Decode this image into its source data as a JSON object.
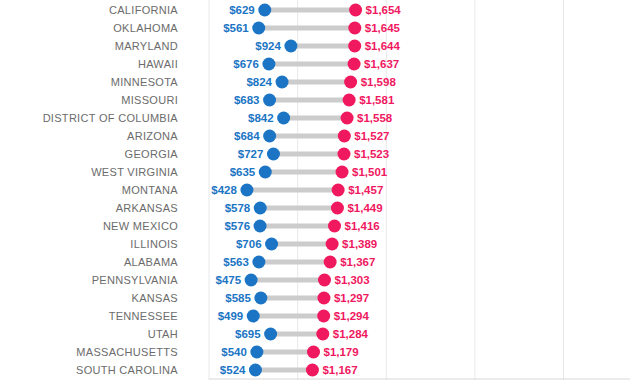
{
  "chart_data": {
    "type": "dumbbell",
    "orientation": "horizontal",
    "categories": [
      "CALIFORNIA",
      "OKLAHOMA",
      "MARYLAND",
      "HAWAII",
      "MINNESOTA",
      "MISSOURI",
      "DISTRICT OF COLUMBIA",
      "ARIZONA",
      "GEORGIA",
      "WEST VIRGINIA",
      "MONTANA",
      "ARKANSAS",
      "NEW MEXICO",
      "ILLINOIS",
      "ALABAMA",
      "PENNSYLVANIA",
      "KANSAS",
      "TENNESSEE",
      "UTAH",
      "MASSACHUSETTS",
      "SOUTH CAROLINA"
    ],
    "series": [
      {
        "color": "#1b75c4",
        "values": [
          629,
          561,
          924,
          676,
          824,
          683,
          842,
          684,
          727,
          635,
          428,
          578,
          576,
          706,
          563,
          475,
          585,
          499,
          695,
          540,
          524
        ],
        "value_labels": [
          "$629",
          "$561",
          "$924",
          "$676",
          "$824",
          "$683",
          "$842",
          "$684",
          "$727",
          "$635",
          "$428",
          "$578",
          "$576",
          "$706",
          "$563",
          "$475",
          "$585",
          "$499",
          "$695",
          "$540",
          "$524"
        ]
      },
      {
        "color": "#f0185f",
        "values": [
          1654,
          1645,
          1644,
          1637,
          1598,
          1581,
          1558,
          1527,
          1523,
          1501,
          1457,
          1449,
          1416,
          1389,
          1367,
          1303,
          1297,
          1294,
          1284,
          1179,
          1167
        ],
        "value_labels": [
          "$1,654",
          "$1,645",
          "$1,644",
          "$1,637",
          "$1,598",
          "$1,581",
          "$1,558",
          "$1,527",
          "$1,523",
          "$1,501",
          "$1,457",
          "$1,449",
          "$1,416",
          "$1,389",
          "$1,367",
          "$1,303",
          "$1,297",
          "$1,294",
          "$1,284",
          "$1,179",
          "$1,167"
        ]
      }
    ],
    "xlim": [
      0,
      4750
    ],
    "xticks": [
      0,
      1000,
      2000,
      3000,
      4000
    ],
    "grid": true,
    "data_labels": true,
    "tick_labels": false
  }
}
